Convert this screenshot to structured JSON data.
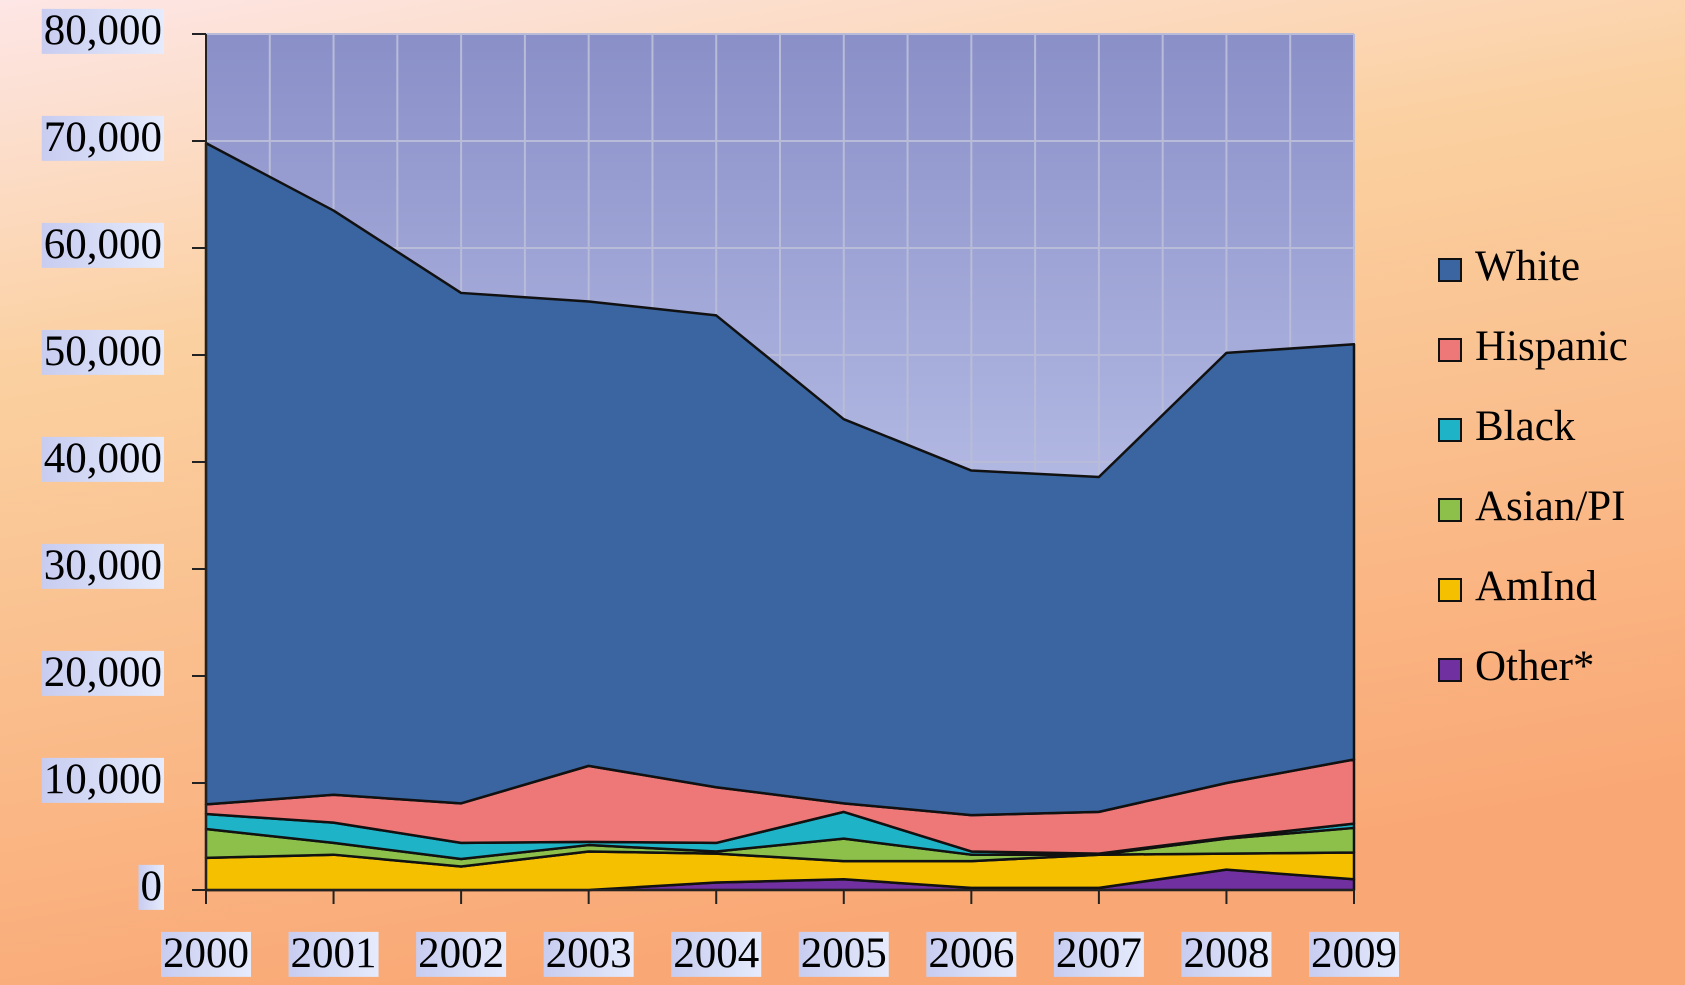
{
  "chart_data": {
    "type": "stacked_area",
    "categories": [
      "2000",
      "2001",
      "2002",
      "2003",
      "2004",
      "2005",
      "2006",
      "2007",
      "2008",
      "2009"
    ],
    "series": [
      {
        "name": "Other*",
        "color": "#7030a0",
        "values": [
          0,
          0,
          0,
          0,
          700,
          1000,
          200,
          200,
          1900,
          1000
        ]
      },
      {
        "name": "AmInd",
        "color": "#f5c000",
        "values": [
          3000,
          3300,
          2200,
          3600,
          2700,
          1700,
          2500,
          3100,
          1500,
          2500
        ]
      },
      {
        "name": "Asian/PI",
        "color": "#8cc04a",
        "values": [
          2700,
          1100,
          700,
          600,
          200,
          2100,
          600,
          0,
          1400,
          2300
        ]
      },
      {
        "name": "Black",
        "color": "#1fb3c8",
        "values": [
          1400,
          1900,
          1500,
          300,
          800,
          2500,
          300,
          100,
          100,
          400
        ]
      },
      {
        "name": "Hispanic",
        "color": "#ee7777",
        "values": [
          900,
          2600,
          3700,
          7100,
          5200,
          800,
          3400,
          3900,
          5100,
          6000
        ]
      },
      {
        "name": "White",
        "color": "#3a65a0",
        "values": [
          61800,
          54600,
          47700,
          43400,
          44100,
          35900,
          32200,
          31300,
          40200,
          38800
        ]
      }
    ],
    "ylim": [
      0,
      80000
    ],
    "yticks": [
      0,
      {
        "value": 10000,
        "label": "10,000"
      },
      {
        "value": 20000,
        "label": "20,000"
      },
      {
        "value": 30000,
        "label": "30,000"
      },
      {
        "value": 40000,
        "label": "40,000"
      },
      {
        "value": 50000,
        "label": "50,000"
      },
      {
        "value": 60000,
        "label": "60,000"
      },
      {
        "value": 70000,
        "label": "70,000"
      },
      {
        "value": 80000,
        "label": "80,000"
      }
    ],
    "grid": true,
    "legend": "right"
  }
}
